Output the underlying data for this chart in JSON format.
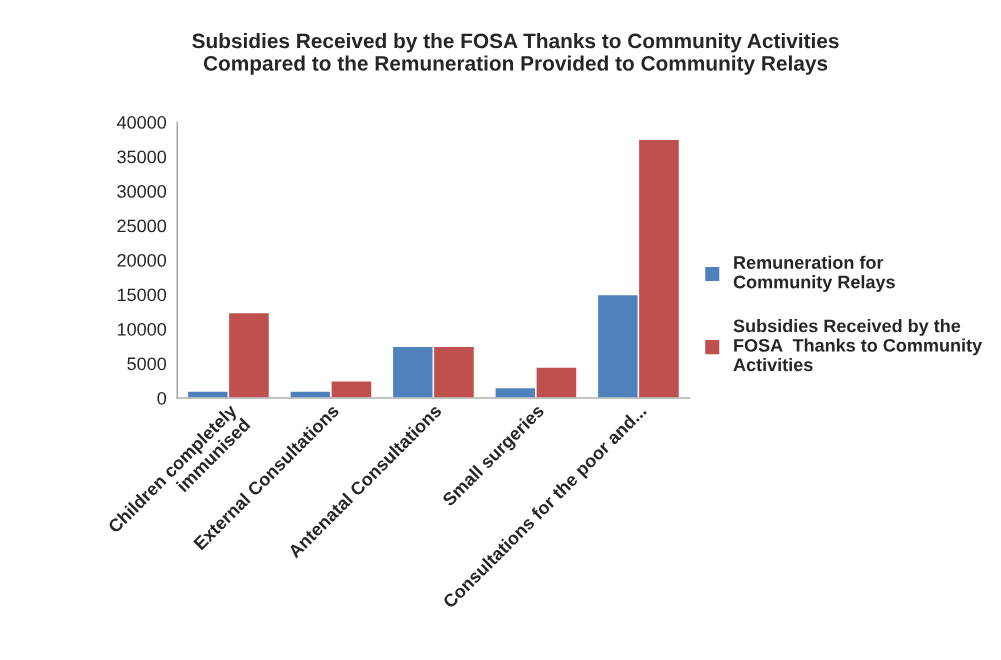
{
  "chart_data": {
    "type": "bar",
    "title": "Subsidies Received by the FOSA Thanks to Community Activities\nCompared to the Remuneration Provided to Community Relays",
    "categories": [
      "Children completely\nimmunised",
      "External Consultations",
      "Antenatal Consultations",
      "Small surgeries",
      "Consultations for the poor and..."
    ],
    "series": [
      {
        "name": "Remuneration for\nCommunity Relays",
        "color": "#4f81bd",
        "values": [
          1000,
          1000,
          7500,
          1500,
          15000
        ]
      },
      {
        "name": "Subsidies Received by the\nFOSA  Thanks to Community\nActivities",
        "color": "#c0504d",
        "values": [
          12400,
          2500,
          7500,
          4500,
          37500
        ]
      }
    ],
    "ylim": [
      0,
      40000
    ],
    "yticks": [
      0,
      5000,
      10000,
      15000,
      20000,
      25000,
      30000,
      35000,
      40000
    ],
    "grid": false,
    "legend": "right"
  }
}
